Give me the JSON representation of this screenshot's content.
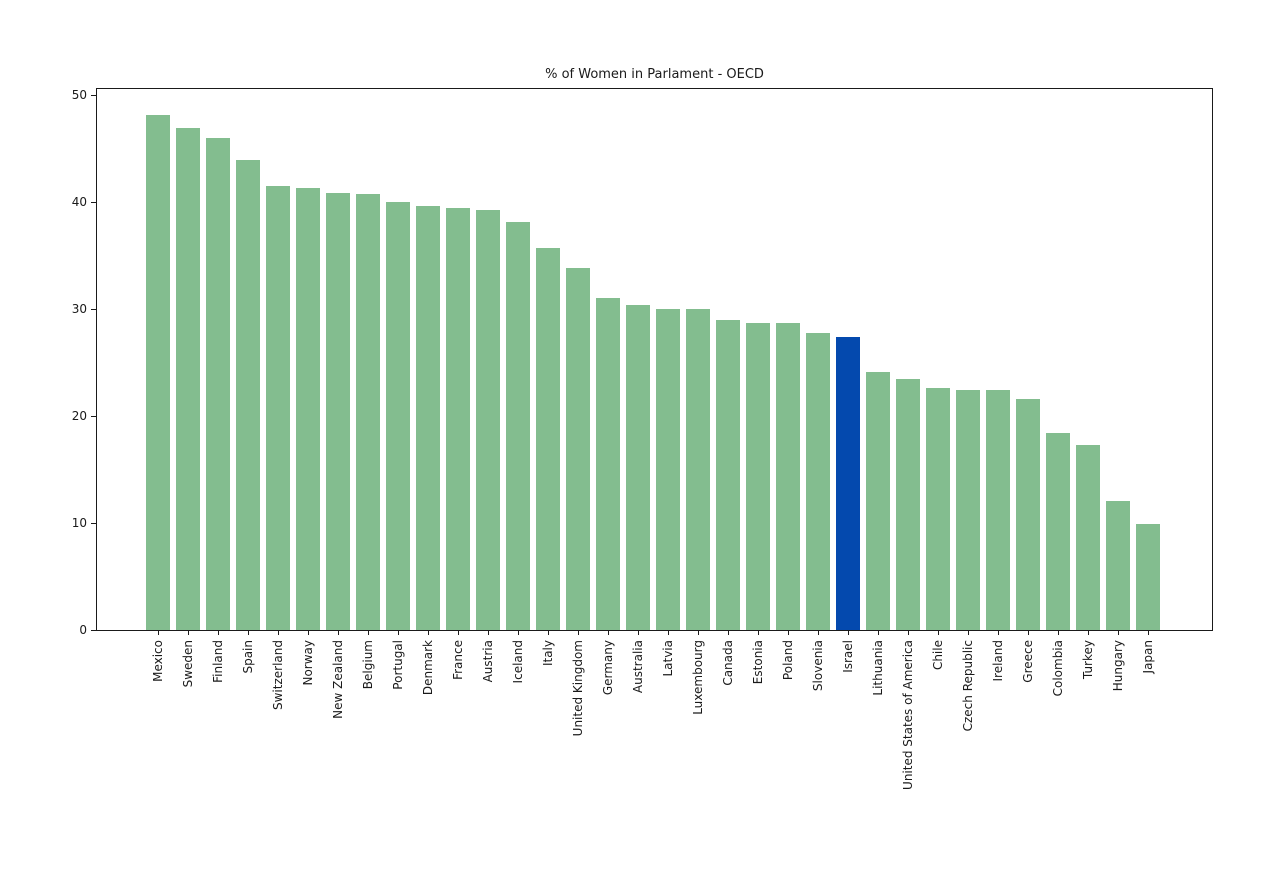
{
  "chart_data": {
    "type": "bar",
    "title": "% of Women in Parlament - OECD",
    "categories": [
      "Mexico",
      "Sweden",
      "Finland",
      "Spain",
      "Switzerland",
      "Norway",
      "New Zealand",
      "Belgium",
      "Portugal",
      "Denmark",
      "France",
      "Austria",
      "Iceland",
      "Italy",
      "United Kingdom",
      "Germany",
      "Australia",
      "Latvia",
      "Luxembourg",
      "Canada",
      "Estonia",
      "Poland",
      "Slovenia",
      "Israel",
      "Lithuania",
      "United States of America",
      "Chile",
      "Czech Republic",
      "Ireland",
      "Greece",
      "Colombia",
      "Turkey",
      "Hungary",
      "Japan"
    ],
    "values": [
      48.2,
      47.0,
      46.0,
      44.0,
      41.5,
      41.4,
      40.9,
      40.8,
      40.0,
      39.7,
      39.5,
      39.3,
      38.2,
      35.7,
      33.9,
      31.1,
      30.4,
      30.0,
      30.0,
      29.0,
      28.7,
      28.7,
      27.8,
      27.4,
      24.1,
      23.5,
      22.6,
      22.5,
      22.5,
      21.6,
      18.4,
      17.3,
      12.1,
      9.9
    ],
    "bar_color": "#83bd8f",
    "highlight": {
      "category": "Israel",
      "color": "#0449ae"
    },
    "xlabel": "",
    "ylabel": "",
    "yticks": [
      0,
      10,
      20,
      30,
      40,
      50
    ],
    "ylim": [
      0,
      50.61
    ],
    "xtick_rotation_deg": 90,
    "grid": false,
    "legend": "none",
    "background_color": "#ffffff",
    "axis_color": "#1a1a1a"
  }
}
